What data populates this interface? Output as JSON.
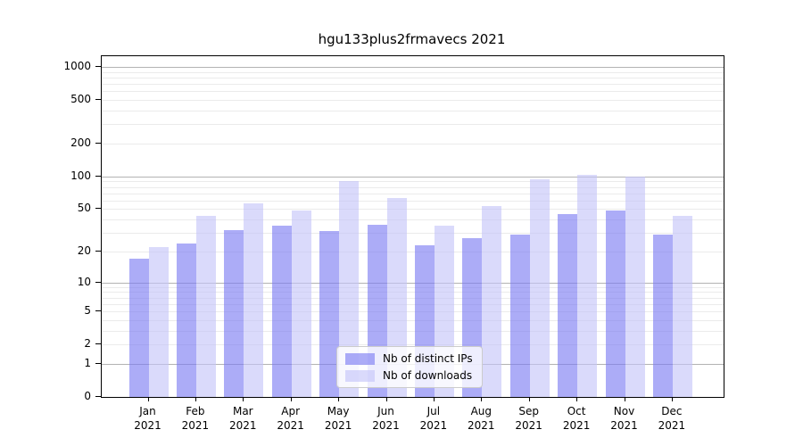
{
  "chart_data": {
    "type": "bar",
    "title": "hgu133plus2frmavecs 2021",
    "categories": [
      "Jan",
      "Feb",
      "Mar",
      "Apr",
      "May",
      "Jun",
      "Jul",
      "Aug",
      "Sep",
      "Oct",
      "Nov",
      "Dec"
    ],
    "year": "2021",
    "series": [
      {
        "name": "Nb of distinct IPs",
        "color_hex": "#a7a7f4",
        "color_rgba": "rgba(121,121,242,0.62)",
        "values": [
          17,
          24,
          32,
          35,
          31,
          36,
          23,
          27,
          29,
          45,
          49,
          29
        ]
      },
      {
        "name": "Nb of downloads",
        "color_hex": "#dadaf9",
        "color_rgba": "rgba(195,195,248,0.62)",
        "values": [
          22,
          43,
          56,
          49,
          91,
          63,
          35,
          53,
          94,
          104,
          99,
          43
        ]
      }
    ],
    "y_ticks": [
      0,
      1,
      2,
      5,
      10,
      20,
      50,
      100,
      200,
      500,
      1000
    ],
    "ylim": [
      0,
      1250
    ],
    "scale": "log1p",
    "grid": true,
    "grid_major_at": [
      1,
      10,
      100,
      1000
    ],
    "grid_major_color": "#b3b3b3",
    "grid_minor_color": "#ebebeb",
    "legend_position": "bottom-center",
    "xlabel": "",
    "ylabel": ""
  }
}
